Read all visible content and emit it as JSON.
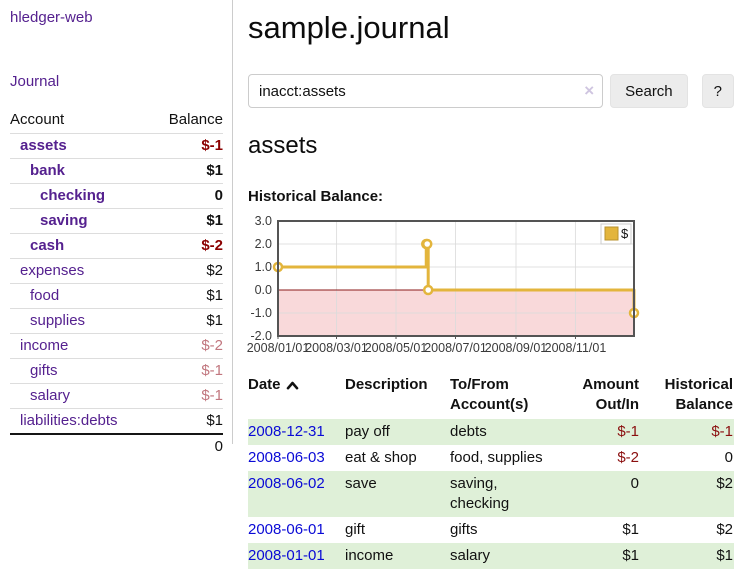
{
  "app_title": "hledger-web",
  "sidebar": {
    "journal_link": "Journal",
    "accounts_table": {
      "headers": {
        "account": "Account",
        "balance": "Balance"
      },
      "rows": [
        {
          "name": "assets",
          "indent": 1,
          "cls": "strong",
          "balance": "$-1",
          "balance_cls": "neg-strong"
        },
        {
          "name": "bank",
          "indent": 2,
          "cls": "strong",
          "balance": "$1",
          "balance_cls": ""
        },
        {
          "name": "checking",
          "indent": 3,
          "cls": "strong",
          "balance": "0",
          "balance_cls": ""
        },
        {
          "name": "saving",
          "indent": 3,
          "cls": "strong",
          "balance": "$1",
          "balance_cls": ""
        },
        {
          "name": "cash",
          "indent": 2,
          "cls": "strong",
          "balance": "$-2",
          "balance_cls": "neg-strong"
        },
        {
          "name": "expenses",
          "indent": 1,
          "cls": "",
          "balance": "$2",
          "balance_cls": ""
        },
        {
          "name": "food",
          "indent": 2,
          "cls": "",
          "balance": "$1",
          "balance_cls": ""
        },
        {
          "name": "supplies",
          "indent": 2,
          "cls": "",
          "balance": "$1",
          "balance_cls": ""
        },
        {
          "name": "income",
          "indent": 1,
          "cls": "",
          "balance": "$-2",
          "balance_cls": "neg-soft"
        },
        {
          "name": "gifts",
          "indent": 2,
          "cls": "",
          "balance": "$-1",
          "balance_cls": "neg-soft"
        },
        {
          "name": "salary",
          "indent": 2,
          "cls": "",
          "name_cls": "blue",
          "balance": "$-1",
          "balance_cls": "neg-soft"
        },
        {
          "name": "liabilities:debts",
          "indent": 1,
          "cls": "",
          "balance": "$1",
          "balance_cls": ""
        }
      ],
      "total": "0"
    }
  },
  "main": {
    "title": "sample.journal",
    "search": {
      "value": "inacct:assets",
      "clear_icon": "×",
      "search_button": "Search",
      "help_button": "?"
    },
    "account_heading": "assets",
    "chart_label": "Historical Balance:"
  },
  "chart_data": {
    "type": "line",
    "style": "step",
    "title": "Historical Balance:",
    "ylim": [
      -2.0,
      3.0
    ],
    "yticks": [
      3.0,
      2.0,
      1.0,
      0.0,
      -1.0,
      -2.0
    ],
    "xticks": [
      "2008/01/01",
      "2008/03/01",
      "2008/05/01",
      "2008/07/01",
      "2008/09/01",
      "2008/11/01"
    ],
    "xrange": [
      "2008-01-01",
      "2008-12-31"
    ],
    "grid": true,
    "negative_region_fill": "#f9d9da",
    "zero_line_color": "#8b1a1a",
    "border_color": "#545454",
    "legend": {
      "position": "top-right",
      "label": "$"
    },
    "series": [
      {
        "name": "$",
        "color": "#e3b53c",
        "points": [
          [
            "2008-01-01",
            1
          ],
          [
            "2008-06-01",
            2
          ],
          [
            "2008-06-02",
            2
          ],
          [
            "2008-06-03",
            0
          ],
          [
            "2008-12-31",
            -1
          ]
        ]
      }
    ]
  },
  "register_table": {
    "headers": {
      "date": "Date",
      "description": "Description",
      "accounts": "To/From Account(s)",
      "amount": "Amount Out/In",
      "balance": "Historical Balance"
    },
    "rows": [
      {
        "date": "2008-12-31",
        "description": "pay off",
        "accounts": "debts",
        "amount": "$-1",
        "amount_cls": "neg",
        "balance": "$-1",
        "balance_cls": "neg"
      },
      {
        "date": "2008-06-03",
        "description": "eat & shop",
        "accounts": "food, supplies",
        "amount": "$-2",
        "amount_cls": "neg",
        "balance": "0",
        "balance_cls": ""
      },
      {
        "date": "2008-06-02",
        "description": "save",
        "accounts": "saving, checking",
        "amount": "0",
        "amount_cls": "",
        "balance": "$2",
        "balance_cls": ""
      },
      {
        "date": "2008-06-01",
        "description": "gift",
        "accounts": "gifts",
        "amount": "$1",
        "amount_cls": "",
        "balance": "$2",
        "balance_cls": ""
      },
      {
        "date": "2008-01-01",
        "description": "income",
        "accounts": "salary",
        "amount": "$1",
        "amount_cls": "",
        "balance": "$1",
        "balance_cls": ""
      }
    ]
  }
}
